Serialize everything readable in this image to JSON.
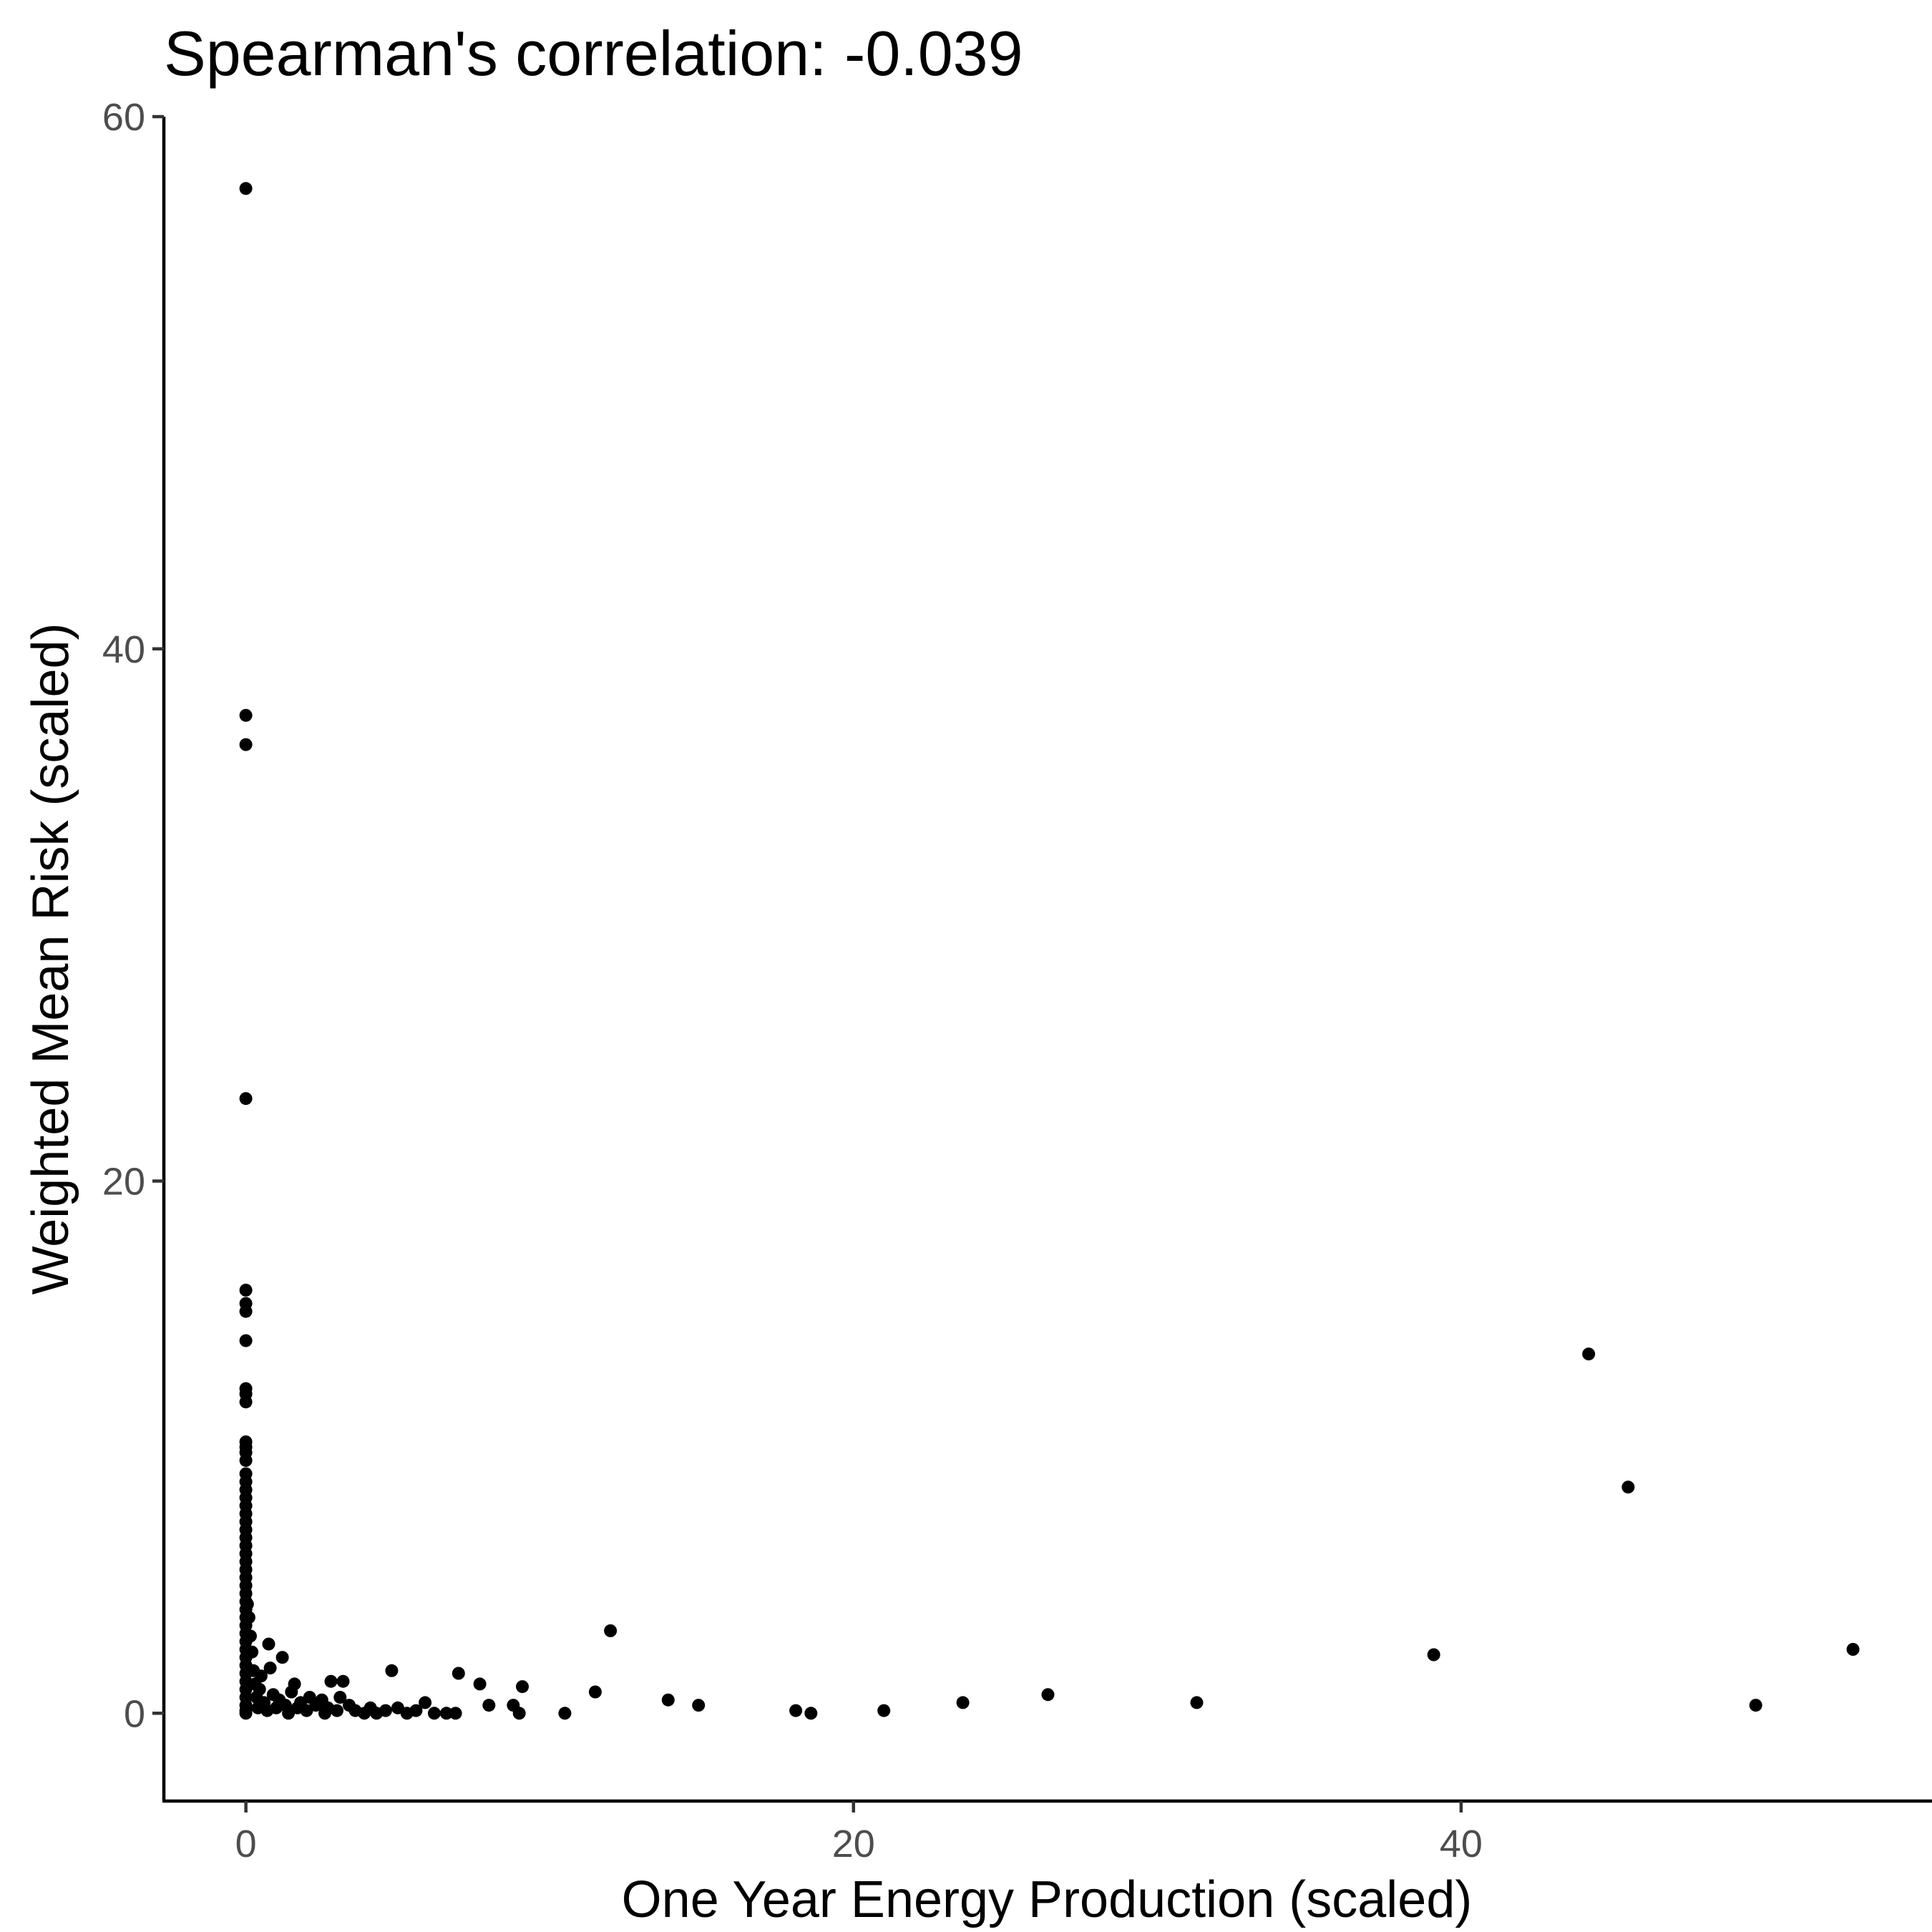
{
  "chart_data": {
    "type": "scatter",
    "title": "Spearman's correlation: -0.039",
    "xlabel": "One Year Energy Production (scaled)",
    "ylabel": "Weighted Mean Risk (scaled)",
    "xlim": [
      -2.7,
      55.5
    ],
    "ylim": [
      -3.3,
      60
    ],
    "xticks": [
      0,
      20,
      40
    ],
    "yticks": [
      0,
      20,
      40,
      60
    ],
    "grid": false,
    "legend": "none",
    "point_color": "#000000",
    "points": [
      [
        0,
        57.3
      ],
      [
        0,
        37.5
      ],
      [
        0,
        36.4
      ],
      [
        0,
        23.1
      ],
      [
        0,
        15.9
      ],
      [
        0,
        15.4
      ],
      [
        0,
        15.1
      ],
      [
        0,
        14.0
      ],
      [
        0,
        12.2
      ],
      [
        0,
        12.0
      ],
      [
        0,
        11.7
      ],
      [
        0,
        10.2
      ],
      [
        0,
        10.0
      ],
      [
        0,
        9.8
      ],
      [
        0,
        9.5
      ],
      [
        0,
        9.0
      ],
      [
        0,
        8.7
      ],
      [
        0,
        8.4
      ],
      [
        0,
        8.1
      ],
      [
        0,
        7.8
      ],
      [
        0,
        7.5
      ],
      [
        0,
        7.2
      ],
      [
        0,
        6.9
      ],
      [
        0,
        6.6
      ],
      [
        0,
        6.3
      ],
      [
        0,
        6.0
      ],
      [
        0,
        5.7
      ],
      [
        0,
        5.4
      ],
      [
        0,
        5.1
      ],
      [
        0,
        4.8
      ],
      [
        0,
        4.5
      ],
      [
        0,
        4.2
      ],
      [
        0,
        3.9
      ],
      [
        0,
        3.6
      ],
      [
        0,
        3.3
      ],
      [
        0,
        3.0
      ],
      [
        0,
        2.7
      ],
      [
        0,
        2.4
      ],
      [
        0,
        2.1
      ],
      [
        0,
        1.8
      ],
      [
        0,
        1.5
      ],
      [
        0,
        1.2
      ],
      [
        0,
        0.9
      ],
      [
        0,
        0.6
      ],
      [
        0,
        0.3
      ],
      [
        0,
        0.1
      ],
      [
        0,
        0.0
      ],
      [
        0.05,
        4.1
      ],
      [
        0.1,
        3.6
      ],
      [
        0.15,
        2.9
      ],
      [
        0.2,
        2.3
      ],
      [
        0.25,
        1.6
      ],
      [
        0.3,
        1.1
      ],
      [
        0.35,
        0.6
      ],
      [
        0.4,
        0.2
      ],
      [
        0.45,
        0.9
      ],
      [
        0.5,
        1.4
      ],
      [
        0.6,
        0.4
      ],
      [
        0.7,
        0.1
      ],
      [
        0.75,
        2.6
      ],
      [
        0.8,
        1.7
      ],
      [
        0.9,
        0.7
      ],
      [
        1.0,
        0.2
      ],
      [
        1.1,
        0.5
      ],
      [
        1.2,
        2.1
      ],
      [
        1.3,
        0.3
      ],
      [
        1.4,
        0.0
      ],
      [
        1.5,
        0.8
      ],
      [
        1.6,
        1.1
      ],
      [
        1.7,
        0.2
      ],
      [
        1.8,
        0.4
      ],
      [
        2.0,
        0.1
      ],
      [
        2.1,
        0.6
      ],
      [
        2.3,
        0.3
      ],
      [
        2.5,
        0.5
      ],
      [
        2.6,
        0.0
      ],
      [
        2.7,
        0.2
      ],
      [
        2.8,
        1.2
      ],
      [
        3.0,
        0.1
      ],
      [
        3.1,
        0.6
      ],
      [
        3.2,
        1.2
      ],
      [
        3.4,
        0.3
      ],
      [
        3.6,
        0.1
      ],
      [
        3.9,
        0.0
      ],
      [
        4.1,
        0.2
      ],
      [
        4.3,
        0.0
      ],
      [
        4.6,
        0.1
      ],
      [
        4.8,
        1.6
      ],
      [
        5.0,
        0.2
      ],
      [
        5.3,
        0.0
      ],
      [
        5.6,
        0.1
      ],
      [
        5.9,
        0.4
      ],
      [
        6.2,
        0.0
      ],
      [
        6.6,
        0.0
      ],
      [
        6.9,
        0.0
      ],
      [
        7.0,
        1.5
      ],
      [
        7.7,
        1.1
      ],
      [
        8.0,
        0.3
      ],
      [
        8.8,
        0.3
      ],
      [
        9.0,
        0.0
      ],
      [
        9.1,
        1.0
      ],
      [
        10.5,
        0.0
      ],
      [
        11.5,
        0.8
      ],
      [
        12.0,
        3.1
      ],
      [
        13.9,
        0.5
      ],
      [
        14.9,
        0.3
      ],
      [
        18.1,
        0.1
      ],
      [
        18.6,
        0.0
      ],
      [
        21.0,
        0.1
      ],
      [
        23.6,
        0.4
      ],
      [
        26.4,
        0.7
      ],
      [
        31.3,
        0.4
      ],
      [
        39.1,
        2.2
      ],
      [
        44.2,
        13.5
      ],
      [
        45.5,
        8.5
      ],
      [
        49.7,
        0.3
      ],
      [
        52.9,
        2.4
      ]
    ]
  }
}
